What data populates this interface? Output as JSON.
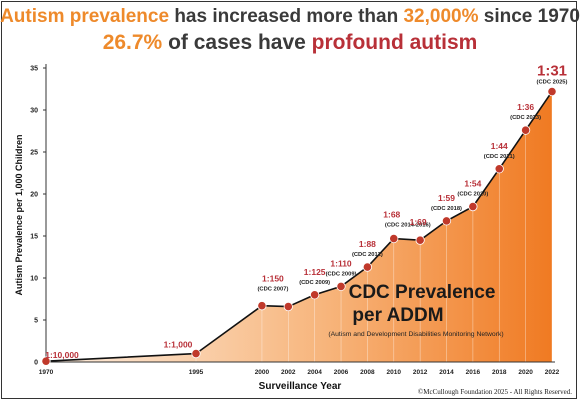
{
  "headline": {
    "line1": {
      "a": "Autism prevalence",
      "b": " has increased more than ",
      "c": "32,000%",
      "d": " since 1970"
    },
    "line2": {
      "a": "26.7%",
      "b": " of cases have ",
      "c": "profound autism"
    }
  },
  "chart_data": {
    "type": "area",
    "title": "CDC Prevalence per ADDM",
    "subtitle": "(Autism and Development Disabilities Monitoring Network)",
    "xlabel": "Surveillance Year",
    "ylabel": "Autism Prevalence per 1,000 Children",
    "ylim": [
      0,
      35
    ],
    "yticks": [
      0,
      5,
      10,
      15,
      20,
      25,
      30,
      35
    ],
    "xticks": [
      1970,
      1995,
      2000,
      2002,
      2004,
      2006,
      2008,
      2010,
      2012,
      2014,
      2016,
      2018,
      2020,
      2022
    ],
    "grid": "vertical",
    "series": [
      {
        "points": [
          {
            "x": 1970,
            "y": 0.1,
            "label": "1:10,000",
            "sublabel": ""
          },
          {
            "x": 1995,
            "y": 1.0,
            "label": "1:1,000",
            "sublabel": ""
          },
          {
            "x": 2000,
            "y": 6.7,
            "label": "1:150",
            "sublabel": "(CDC 2007)"
          },
          {
            "x": 2002,
            "y": 6.6,
            "label": "",
            "sublabel": ""
          },
          {
            "x": 2004,
            "y": 8.0,
            "label": "1:125",
            "sublabel": "(CDC 2009)"
          },
          {
            "x": 2006,
            "y": 9.0,
            "label": "1:110",
            "sublabel": "(CDC 2009)"
          },
          {
            "x": 2008,
            "y": 11.3,
            "label": "1:88",
            "sublabel": "(CDC 2012)"
          },
          {
            "x": 2010,
            "y": 14.7,
            "label": "1:68",
            "sublabel": "(CDC 2014-2016)"
          },
          {
            "x": 2012,
            "y": 14.5,
            "label": "1:69",
            "sublabel": ""
          },
          {
            "x": 2014,
            "y": 16.8,
            "label": "1:59",
            "sublabel": "(CDC 2018)"
          },
          {
            "x": 2016,
            "y": 18.5,
            "label": "1:54",
            "sublabel": "(CDC 2020)"
          },
          {
            "x": 2018,
            "y": 23.0,
            "label": "1:44",
            "sublabel": "(CDC 2021)"
          },
          {
            "x": 2020,
            "y": 27.6,
            "label": "1:36",
            "sublabel": "(CDC 2023)"
          },
          {
            "x": 2022,
            "y": 32.2,
            "label": "1:31",
            "sublabel": "(CDC 2025)"
          }
        ]
      }
    ],
    "colors": {
      "line": "#111111",
      "marker": "#c0392b",
      "label": "#b83038",
      "fill_start": "#fdeee0",
      "fill_end": "#f07a22"
    }
  },
  "footer": "©McCullough Foundation 2025 - All Rights Reserved."
}
